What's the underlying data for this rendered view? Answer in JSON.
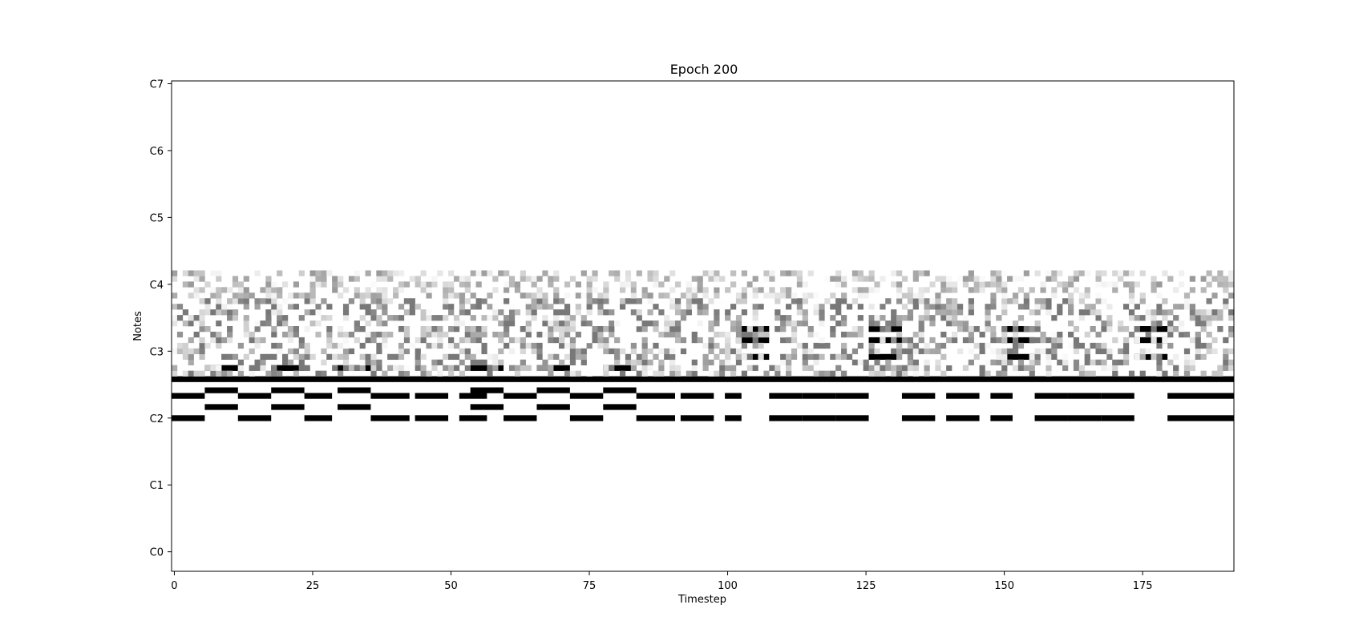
{
  "chart_data": {
    "type": "heatmap",
    "title": "Epoch 200",
    "xlabel": "Timestep",
    "ylabel": "Notes",
    "xlim": [
      -0.5,
      191.5
    ],
    "x_ticks": [
      0,
      25,
      50,
      75,
      100,
      125,
      150,
      175
    ],
    "x_tick_labels": [
      "0",
      "25",
      "50",
      "75",
      "100",
      "125",
      "150",
      "175"
    ],
    "y_ticks": [
      0,
      12,
      24,
      36,
      48,
      60,
      72,
      84
    ],
    "y_tick_labels": [
      "C0",
      "C1",
      "C2",
      "C3",
      "C4",
      "C5",
      "C6",
      "C7"
    ],
    "ylim": [
      -3.5,
      84.5
    ],
    "timesteps": 192,
    "colormap": "Greys",
    "grid": false,
    "note_rows": [
      {
        "pitch": 24,
        "segments": [
          [
            0,
            5
          ],
          [
            12,
            17
          ],
          [
            24,
            28
          ],
          [
            36,
            42
          ],
          [
            44,
            49
          ],
          [
            52,
            56
          ],
          [
            60,
            65
          ],
          [
            72,
            77
          ],
          [
            84,
            90
          ],
          [
            92,
            97
          ],
          [
            100,
            102
          ],
          [
            108,
            113
          ],
          [
            114,
            119
          ],
          [
            120,
            125
          ],
          [
            132,
            137
          ],
          [
            140,
            145
          ],
          [
            148,
            151
          ],
          [
            156,
            161
          ],
          [
            162,
            167
          ],
          [
            168,
            173
          ],
          [
            180,
            191
          ]
        ]
      },
      {
        "pitch": 26,
        "segments": [
          [
            6,
            11
          ],
          [
            18,
            23
          ],
          [
            30,
            35
          ],
          [
            54,
            59
          ],
          [
            66,
            71
          ],
          [
            78,
            83
          ]
        ]
      },
      {
        "pitch": 28,
        "segments": [
          [
            0,
            5
          ],
          [
            12,
            17
          ],
          [
            24,
            28
          ],
          [
            36,
            42
          ],
          [
            44,
            49
          ],
          [
            52,
            56
          ],
          [
            60,
            65
          ],
          [
            72,
            77
          ],
          [
            84,
            90
          ],
          [
            92,
            97
          ],
          [
            100,
            102
          ],
          [
            108,
            113
          ],
          [
            114,
            119
          ],
          [
            120,
            125
          ],
          [
            132,
            137
          ],
          [
            140,
            145
          ],
          [
            148,
            151
          ],
          [
            156,
            161
          ],
          [
            162,
            167
          ],
          [
            168,
            173
          ],
          [
            180,
            191
          ]
        ]
      },
      {
        "pitch": 29,
        "segments": [
          [
            6,
            11
          ],
          [
            18,
            23
          ],
          [
            30,
            35
          ],
          [
            54,
            59
          ],
          [
            66,
            71
          ],
          [
            78,
            83
          ]
        ]
      },
      {
        "pitch": 31,
        "segments": [
          [
            0,
            191
          ]
        ]
      },
      {
        "pitch": 33,
        "segments": [
          [
            6,
            11
          ],
          [
            18,
            23
          ],
          [
            30,
            35
          ],
          [
            54,
            59
          ],
          [
            66,
            71
          ],
          [
            78,
            83
          ]
        ]
      },
      {
        "pitch": 35,
        "segments": [
          [
            102,
            107
          ],
          [
            126,
            131
          ],
          [
            150,
            155
          ],
          [
            174,
            179
          ]
        ]
      },
      {
        "pitch": 38,
        "segments": [
          [
            102,
            107
          ],
          [
            126,
            131
          ],
          [
            150,
            155
          ],
          [
            174,
            179
          ]
        ]
      },
      {
        "pitch": 40,
        "segments": [
          [
            102,
            107
          ],
          [
            126,
            131
          ],
          [
            150,
            155
          ],
          [
            174,
            179
          ]
        ]
      }
    ]
  }
}
